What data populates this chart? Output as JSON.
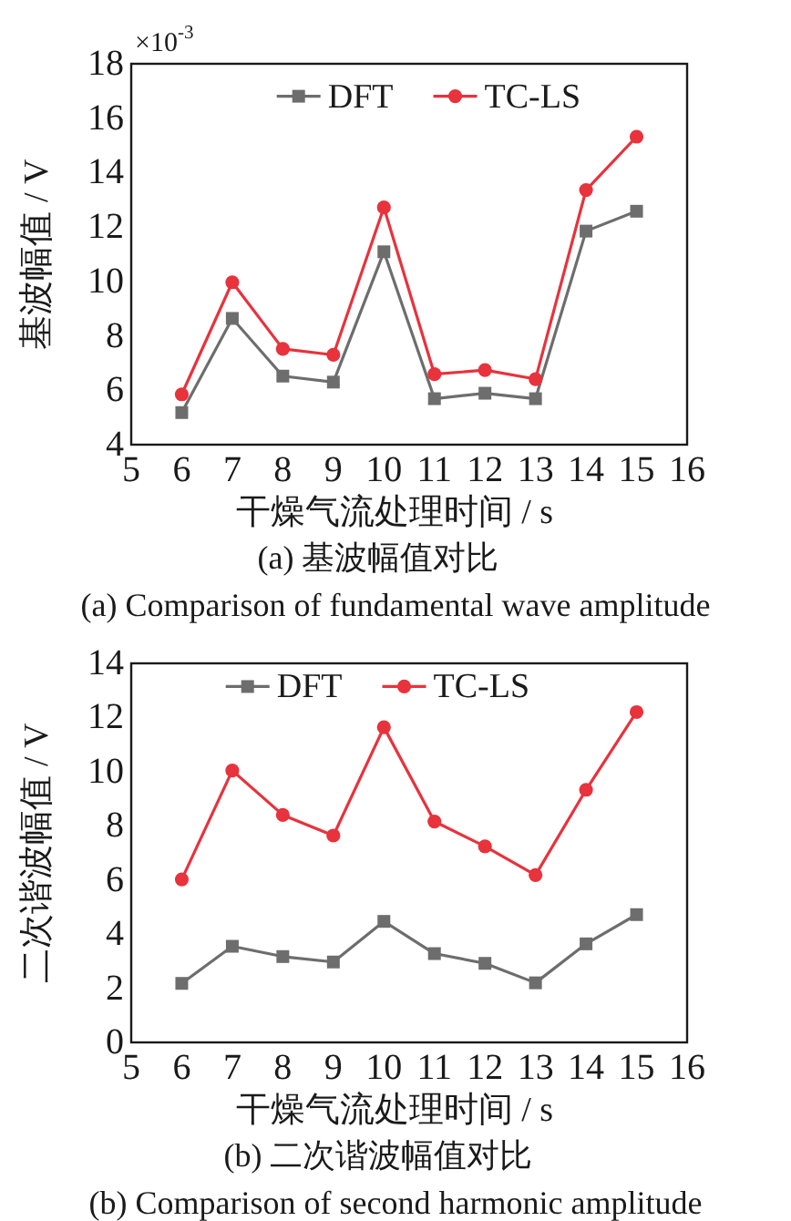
{
  "chart_data": [
    {
      "type": "line",
      "title": "(a)  基波幅值对比",
      "subtitle": "(a)  Comparison of fundamental wave amplitude",
      "xlabel": "干燥气流处理时间 / s",
      "ylabel": "基波幅值 / V",
      "annotations": [
        "×10$^{-3}$"
      ],
      "x": [
        6,
        7,
        8,
        9,
        10,
        11,
        12,
        13,
        14,
        15
      ],
      "series": [
        {
          "name": "DFT",
          "color": "#6d6d6d",
          "marker": "square",
          "values": [
            5.18,
            8.64,
            6.52,
            6.3,
            11.09,
            5.69,
            5.89,
            5.69,
            11.85,
            12.58
          ]
        },
        {
          "name": "TC-LS",
          "color": "#e8323c",
          "marker": "circle",
          "values": [
            5.85,
            9.97,
            7.52,
            7.3,
            12.72,
            6.59,
            6.74,
            6.41,
            13.36,
            15.32
          ]
        }
      ],
      "xlim": [
        5,
        16
      ],
      "ylim": [
        4,
        18
      ],
      "xticks": [
        5,
        6,
        7,
        8,
        9,
        10,
        11,
        12,
        13,
        14,
        15,
        16
      ],
      "yticks": [
        4,
        6,
        8,
        10,
        12,
        14,
        16,
        18
      ],
      "legend": "top"
    },
    {
      "type": "line",
      "title": "(b)  二次谐波幅值对比",
      "subtitle": "(b)  Comparison of second harmonic amplitude",
      "xlabel": "干燥气流处理时间 / s",
      "ylabel": "二次谐波幅值 / V",
      "x": [
        6,
        7,
        8,
        9,
        10,
        11,
        12,
        13,
        14,
        15
      ],
      "series": [
        {
          "name": "DFT",
          "color": "#6d6d6d",
          "marker": "square",
          "values": [
            2.18,
            3.55,
            3.17,
            2.97,
            4.47,
            3.28,
            2.92,
            2.2,
            3.64,
            4.72
          ]
        },
        {
          "name": "TC-LS",
          "color": "#e8323c",
          "marker": "circle",
          "values": [
            6.02,
            10.04,
            8.4,
            7.64,
            11.64,
            8.16,
            7.24,
            6.18,
            9.33,
            12.2
          ]
        }
      ],
      "xlim": [
        5,
        16
      ],
      "ylim": [
        0,
        14
      ],
      "xticks": [
        5,
        6,
        7,
        8,
        9,
        10,
        11,
        12,
        13,
        14,
        15,
        16
      ],
      "yticks": [
        0,
        2,
        4,
        6,
        8,
        10,
        12,
        14
      ],
      "legend": "top"
    }
  ]
}
